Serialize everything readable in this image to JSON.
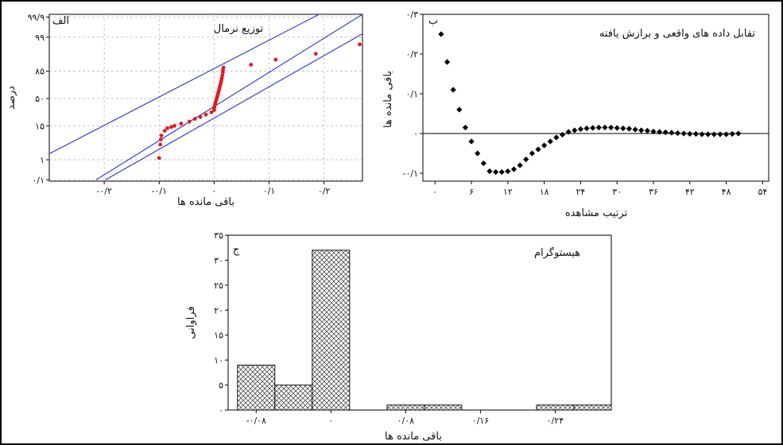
{
  "figure": {
    "background": "#ffffff"
  },
  "chart_data": [
    {
      "id": "a",
      "type": "scatter",
      "title": "توزیع نرمال",
      "panel_tag": "الف",
      "xlabel": "باقی مانده ها",
      "ylabel": "درصد",
      "xlim": [
        -0.3,
        0.27
      ],
      "x_ticks": [
        {
          "v": -0.2,
          "label": "-۰/۲"
        },
        {
          "v": -0.1,
          "label": "-۰/۱"
        },
        {
          "v": 0.0,
          "label": "۰"
        },
        {
          "v": 0.1,
          "label": "۰/۱"
        },
        {
          "v": 0.2,
          "label": "۰/۲"
        }
      ],
      "y_ticks": [
        {
          "v": 0.1,
          "label": "۰/۱"
        },
        {
          "v": 1,
          "label": "۱"
        },
        {
          "v": 15,
          "label": "۱۵"
        },
        {
          "v": 50,
          "label": "۵۰"
        },
        {
          "v": 85,
          "label": "۸۵"
        },
        {
          "v": 99,
          "label": "۹۹"
        },
        {
          "v": 99.9,
          "label": "۹۹/۹"
        }
      ],
      "y_scale": "normal-probability",
      "grid": true,
      "point_color": "#e31a1c",
      "line_color": "#2233cc",
      "points": [
        {
          "x": -0.1,
          "y": 1.2
        },
        {
          "x": -0.098,
          "y": 4
        },
        {
          "x": -0.097,
          "y": 6
        },
        {
          "x": -0.096,
          "y": 8
        },
        {
          "x": -0.09,
          "y": 11
        },
        {
          "x": -0.085,
          "y": 13
        },
        {
          "x": -0.078,
          "y": 14
        },
        {
          "x": -0.072,
          "y": 15
        },
        {
          "x": -0.06,
          "y": 17
        },
        {
          "x": -0.045,
          "y": 19
        },
        {
          "x": -0.035,
          "y": 22
        },
        {
          "x": -0.025,
          "y": 24
        },
        {
          "x": -0.015,
          "y": 27
        },
        {
          "x": -0.005,
          "y": 30
        },
        {
          "x": 0.0,
          "y": 33
        },
        {
          "x": 0.0,
          "y": 36
        },
        {
          "x": 0.001,
          "y": 39
        },
        {
          "x": 0.002,
          "y": 42
        },
        {
          "x": 0.003,
          "y": 45
        },
        {
          "x": 0.004,
          "y": 48
        },
        {
          "x": 0.005,
          "y": 51
        },
        {
          "x": 0.006,
          "y": 54
        },
        {
          "x": 0.007,
          "y": 57
        },
        {
          "x": 0.008,
          "y": 60
        },
        {
          "x": 0.009,
          "y": 63
        },
        {
          "x": 0.01,
          "y": 66
        },
        {
          "x": 0.011,
          "y": 69
        },
        {
          "x": 0.012,
          "y": 72
        },
        {
          "x": 0.013,
          "y": 75
        },
        {
          "x": 0.014,
          "y": 78
        },
        {
          "x": 0.015,
          "y": 81
        },
        {
          "x": 0.016,
          "y": 84
        },
        {
          "x": 0.016,
          "y": 86
        },
        {
          "x": 0.017,
          "y": 88
        },
        {
          "x": 0.067,
          "y": 90
        },
        {
          "x": 0.112,
          "y": 93
        },
        {
          "x": 0.185,
          "y": 95.5
        },
        {
          "x": 0.265,
          "y": 98
        }
      ],
      "fit_lines": [
        {
          "name": "fit",
          "from": {
            "x": -0.215,
            "y": 0.1
          },
          "to": {
            "x": 0.27,
            "y": 99.93
          }
        },
        {
          "name": "upper",
          "from": {
            "x": -0.3,
            "y": 1.8
          },
          "to": {
            "x": 0.2,
            "y": 99.95
          }
        },
        {
          "name": "lower",
          "from": {
            "x": -0.198,
            "y": 0.1
          },
          "to": {
            "x": 0.27,
            "y": 99.3
          }
        }
      ]
    },
    {
      "id": "b",
      "type": "scatter",
      "title": "تقابل داده های واقعی و برازش یافته",
      "panel_tag": "ب",
      "xlabel": "ترتیب مشاهده",
      "ylabel": "باقی مانده ها",
      "xlim": [
        -2,
        55
      ],
      "ylim": [
        -0.12,
        0.3
      ],
      "x_ticks": [
        {
          "v": 0,
          "label": "۰"
        },
        {
          "v": 6,
          "label": "۶"
        },
        {
          "v": 12,
          "label": "۱۲"
        },
        {
          "v": 18,
          "label": "۱۸"
        },
        {
          "v": 24,
          "label": "۲۴"
        },
        {
          "v": 30,
          "label": "۳۰"
        },
        {
          "v": 36,
          "label": "۳۶"
        },
        {
          "v": 42,
          "label": "۴۲"
        },
        {
          "v": 48,
          "label": "۴۸"
        },
        {
          "v": 54,
          "label": "۵۴"
        }
      ],
      "y_ticks": [
        {
          "v": -0.1,
          "label": "-۰/۱"
        },
        {
          "v": 0,
          "label": "۰"
        },
        {
          "v": 0.1,
          "label": "۰/۱"
        },
        {
          "v": 0.2,
          "label": "۰/۲"
        },
        {
          "v": 0.3,
          "label": "۰/۳"
        }
      ],
      "reference_line_y": 0,
      "point_color": "#000000",
      "x": [
        1,
        2,
        3,
        4,
        5,
        6,
        7,
        8,
        9,
        10,
        11,
        12,
        13,
        14,
        15,
        16,
        17,
        18,
        19,
        20,
        21,
        22,
        23,
        24,
        25,
        26,
        27,
        28,
        29,
        30,
        31,
        32,
        33,
        34,
        35,
        36,
        37,
        38,
        39,
        40,
        41,
        42,
        43,
        44,
        45,
        46,
        47,
        48,
        49,
        50
      ],
      "y": [
        0.25,
        0.18,
        0.11,
        0.06,
        0.015,
        -0.02,
        -0.05,
        -0.075,
        -0.095,
        -0.097,
        -0.097,
        -0.095,
        -0.09,
        -0.08,
        -0.065,
        -0.05,
        -0.04,
        -0.03,
        -0.02,
        -0.01,
        -0.003,
        0.004,
        0.008,
        0.011,
        0.013,
        0.014,
        0.015,
        0.015,
        0.015,
        0.014,
        0.013,
        0.012,
        0.01,
        0.008,
        0.007,
        0.005,
        0.004,
        0.003,
        0.002,
        0.001,
        0.0,
        -0.001,
        -0.001,
        -0.002,
        -0.002,
        -0.002,
        -0.002,
        -0.002,
        -0.001,
        0.0
      ]
    },
    {
      "id": "c",
      "type": "bar",
      "title": "هیستوگرام",
      "panel_tag": "ج",
      "xlabel": "باقی مانده ها",
      "ylabel": "فراوانی",
      "xlim": [
        -0.11,
        0.3
      ],
      "ylim": [
        0,
        35
      ],
      "x_ticks": [
        {
          "v": -0.08,
          "label": "-۰/۰۸"
        },
        {
          "v": 0,
          "label": "۰"
        },
        {
          "v": 0.08,
          "label": "۰/۰۸"
        },
        {
          "v": 0.16,
          "label": "۰/۱۶"
        },
        {
          "v": 0.24,
          "label": "۰/۲۴"
        }
      ],
      "y_ticks": [
        {
          "v": 0,
          "label": "۰"
        },
        {
          "v": 5,
          "label": "۵"
        },
        {
          "v": 10,
          "label": "۱۰"
        },
        {
          "v": 15,
          "label": "۱۵"
        },
        {
          "v": 20,
          "label": "۲۰"
        },
        {
          "v": 25,
          "label": "۲۵"
        },
        {
          "v": 30,
          "label": "۳۰"
        },
        {
          "v": 35,
          "label": "۳۵"
        }
      ],
      "bin_width": 0.04,
      "bars": [
        {
          "center": -0.08,
          "value": 9
        },
        {
          "center": -0.04,
          "value": 5
        },
        {
          "center": 0.0,
          "value": 32
        },
        {
          "center": 0.04,
          "value": 0
        },
        {
          "center": 0.08,
          "value": 1
        },
        {
          "center": 0.12,
          "value": 1
        },
        {
          "center": 0.16,
          "value": 0
        },
        {
          "center": 0.2,
          "value": 0
        },
        {
          "center": 0.24,
          "value": 1
        },
        {
          "center": 0.28,
          "value": 1
        }
      ]
    }
  ]
}
